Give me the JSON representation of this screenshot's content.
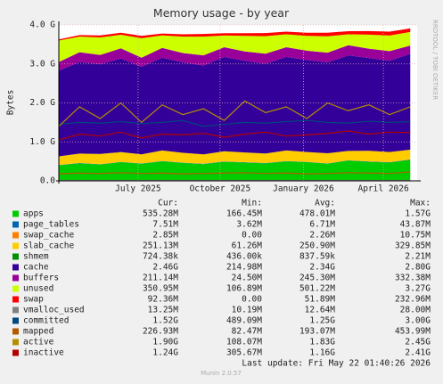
{
  "chart_data": {
    "type": "area",
    "title": "Memory usage - by year",
    "y_label": "Bytes",
    "side_text": "RRDTOOL / TOBI OETIKER",
    "x": [
      0,
      3,
      6,
      9,
      12,
      15,
      18,
      21,
      24,
      27,
      30,
      33,
      36,
      39,
      42,
      45,
      48,
      51
    ],
    "xlim": [
      0,
      52
    ],
    "xticks": [
      {
        "value": 11.5,
        "label": "July 2025"
      },
      {
        "value": 23.4,
        "label": "October 2025"
      },
      {
        "value": 35.5,
        "label": "January 2026"
      },
      {
        "value": 47.1,
        "label": "April 2026"
      }
    ],
    "ylim": [
      0,
      4
    ],
    "yticks": [
      {
        "value": 0,
        "label": "0.0"
      },
      {
        "value": 1,
        "label": "1.0 G"
      },
      {
        "value": 2,
        "label": "2.0 G"
      },
      {
        "value": 3,
        "label": "3.0 G"
      },
      {
        "value": 4,
        "label": "4.0 G"
      }
    ],
    "grid": true,
    "legend_headers": [
      "Cur:",
      "Min:",
      "Avg:",
      "Max:"
    ],
    "series": [
      {
        "name": "apps",
        "color": "#00cc00",
        "stacked": true,
        "values": [
          0.4,
          0.45,
          0.42,
          0.48,
          0.44,
          0.5,
          0.46,
          0.43,
          0.49,
          0.47,
          0.45,
          0.5,
          0.48,
          0.44,
          0.52,
          0.49,
          0.47,
          0.54
        ],
        "cur": "535.28M",
        "min": "166.45M",
        "avg": "478.01M",
        "max": "1.57G"
      },
      {
        "name": "page_tables",
        "color": "#0066b3",
        "stacked": true,
        "values": [
          0.006,
          0.007,
          0.007,
          0.006,
          0.007,
          0.008,
          0.007,
          0.007,
          0.006,
          0.007,
          0.008,
          0.007,
          0.007,
          0.006,
          0.007,
          0.008,
          0.007,
          0.0075
        ],
        "cur": "7.51M",
        "min": "3.62M",
        "avg": "6.71M",
        "max": "43.87M"
      },
      {
        "name": "swap_cache",
        "color": "#ff8000",
        "stacked": true,
        "values": [
          0.002,
          0.002,
          0.003,
          0.002,
          0.002,
          0.002,
          0.003,
          0.002,
          0.002,
          0.002,
          0.003,
          0.002,
          0.002,
          0.002,
          0.002,
          0.003,
          0.002,
          0.003
        ],
        "cur": "2.85M",
        "min": "0.00",
        "avg": "2.26M",
        "max": "10.75M"
      },
      {
        "name": "slab_cache",
        "color": "#ffcc00",
        "stacked": true,
        "values": [
          0.22,
          0.24,
          0.26,
          0.25,
          0.23,
          0.27,
          0.25,
          0.24,
          0.26,
          0.25,
          0.24,
          0.27,
          0.25,
          0.26,
          0.24,
          0.27,
          0.26,
          0.25
        ],
        "cur": "251.13M",
        "min": "61.26M",
        "avg": "250.90M",
        "max": "329.85M"
      },
      {
        "name": "shmem",
        "color": "#008f00",
        "stacked": true,
        "values": [
          0.0008,
          0.0008,
          0.0009,
          0.0008,
          0.0008,
          0.0008,
          0.0009,
          0.0008,
          0.0008,
          0.0008,
          0.0009,
          0.0008,
          0.0008,
          0.0008,
          0.0009,
          0.0008,
          0.0008,
          0.0007
        ],
        "cur": "724.38k",
        "min": "436.00k",
        "avg": "837.59k",
        "max": "2.21M"
      },
      {
        "name": "cache",
        "color": "#330099",
        "stacked": true,
        "values": [
          2.2,
          2.35,
          2.3,
          2.4,
          2.25,
          2.38,
          2.32,
          2.28,
          2.42,
          2.35,
          2.3,
          2.4,
          2.36,
          2.33,
          2.45,
          2.38,
          2.34,
          2.46
        ],
        "cur": "2.46G",
        "min": "214.98M",
        "avg": "2.34G",
        "max": "2.80G"
      },
      {
        "name": "buffers",
        "color": "#990099",
        "stacked": true,
        "values": [
          0.22,
          0.25,
          0.24,
          0.26,
          0.23,
          0.25,
          0.24,
          0.26,
          0.25,
          0.24,
          0.26,
          0.25,
          0.24,
          0.25,
          0.26,
          0.24,
          0.25,
          0.21
        ],
        "cur": "211.14M",
        "min": "24.50M",
        "avg": "245.30M",
        "max": "332.38M"
      },
      {
        "name": "unused",
        "color": "#ccff00",
        "stacked": true,
        "values": [
          0.55,
          0.4,
          0.45,
          0.35,
          0.5,
          0.32,
          0.42,
          0.48,
          0.3,
          0.4,
          0.45,
          0.33,
          0.38,
          0.42,
          0.28,
          0.36,
          0.4,
          0.35
        ],
        "cur": "350.95M",
        "min": "106.89M",
        "avg": "501.22M",
        "max": "3.27G"
      },
      {
        "name": "swap",
        "color": "#ff0000",
        "stacked": true,
        "values": [
          0.03,
          0.04,
          0.05,
          0.05,
          0.06,
          0.05,
          0.06,
          0.07,
          0.06,
          0.07,
          0.08,
          0.07,
          0.08,
          0.09,
          0.08,
          0.09,
          0.1,
          0.09
        ],
        "cur": "92.36M",
        "min": "0.00",
        "avg": "51.89M",
        "max": "232.96M"
      },
      {
        "name": "vmalloc_used",
        "color": "#808080",
        "stacked": false,
        "values": [
          0.012,
          0.013,
          0.012,
          0.013,
          0.012,
          0.013,
          0.012,
          0.013,
          0.012,
          0.013,
          0.012,
          0.013,
          0.012,
          0.013,
          0.012,
          0.013,
          0.012,
          0.013
        ],
        "cur": "13.25M",
        "min": "10.19M",
        "avg": "12.64M",
        "max": "28.00M"
      },
      {
        "name": "committed",
        "color": "#00487d",
        "stacked": false,
        "values": [
          1.45,
          1.5,
          1.48,
          1.52,
          1.47,
          1.5,
          1.55,
          1.4,
          1.45,
          1.5,
          1.48,
          1.52,
          1.55,
          1.5,
          1.48,
          1.53,
          1.5,
          1.52
        ],
        "cur": "1.52G",
        "min": "489.09M",
        "avg": "1.25G",
        "max": "3.00G"
      },
      {
        "name": "mapped",
        "color": "#b35a00",
        "stacked": false,
        "values": [
          0.18,
          0.2,
          0.19,
          0.21,
          0.19,
          0.2,
          0.18,
          0.19,
          0.2,
          0.21,
          0.19,
          0.2,
          0.18,
          0.19,
          0.21,
          0.2,
          0.19,
          0.23
        ],
        "cur": "226.93M",
        "min": "82.47M",
        "avg": "193.07M",
        "max": "453.99M"
      },
      {
        "name": "active",
        "color": "#b38f00",
        "stacked": false,
        "values": [
          1.4,
          1.9,
          1.6,
          2.0,
          1.5,
          1.95,
          1.7,
          1.85,
          1.55,
          2.05,
          1.75,
          1.9,
          1.6,
          2.0,
          1.8,
          1.95,
          1.7,
          1.9
        ],
        "cur": "1.90G",
        "min": "108.07M",
        "avg": "1.83G",
        "max": "2.45G"
      },
      {
        "name": "inactive",
        "color": "#b30000",
        "stacked": false,
        "values": [
          1.05,
          1.2,
          1.15,
          1.25,
          1.1,
          1.2,
          1.18,
          1.22,
          1.12,
          1.2,
          1.25,
          1.15,
          1.18,
          1.22,
          1.28,
          1.2,
          1.25,
          1.24
        ],
        "cur": "1.24G",
        "min": "305.67M",
        "avg": "1.16G",
        "max": "2.41G"
      }
    ],
    "last_update": "Last update: Fri May 22 01:40:26 2026",
    "footer": "Munin 2.0.57"
  }
}
